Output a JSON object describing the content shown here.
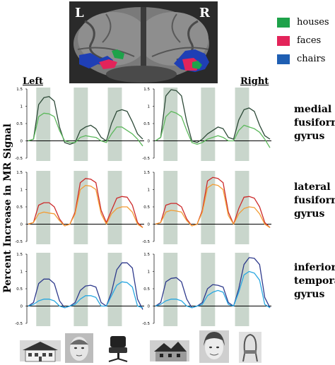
{
  "figure": {
    "legend": [
      {
        "label": "houses",
        "color": "#1ea24a"
      },
      {
        "label": "faces",
        "color": "#e3245a"
      },
      {
        "label": "chairs",
        "color": "#1f5fb3"
      }
    ],
    "brain_labels": {
      "left": "L",
      "right": "R"
    },
    "column_labels": {
      "left": "Left",
      "right": "Right"
    },
    "y_axis_label": "Percent Increase in MR Signal",
    "region_labels": [
      [
        "medial",
        "fusiform",
        "gyrus"
      ],
      [
        "lateral",
        "fusiform",
        "gyrus"
      ],
      [
        "inferior",
        "temporal",
        "gyrus"
      ]
    ],
    "stimuli": [
      "house",
      "face",
      "chair"
    ],
    "stimulus_icon_names": [
      "house-photo-icon",
      "face-photo-icon",
      "chair-photo-icon"
    ]
  },
  "chart_data": [
    {
      "type": "line",
      "panel": "medial fusiform gyrus - Left",
      "ylim": [
        -0.5,
        1.5
      ],
      "y_ticks": [
        "1.5",
        "1",
        "0.5",
        "0",
        "-0.5"
      ],
      "series": [
        {
          "color": "#2d4a38",
          "values": [
            0,
            0.05,
            1.05,
            1.25,
            1.28,
            1.15,
            0.4,
            -0.05,
            -0.1,
            -0.05,
            0.3,
            0.4,
            0.45,
            0.35,
            0.1,
            0,
            0.5,
            0.85,
            0.9,
            0.85,
            0.55,
            0.2,
            0.05
          ]
        },
        {
          "color": "#5cb85c",
          "values": [
            0,
            0.05,
            0.7,
            0.8,
            0.78,
            0.7,
            0.3,
            0,
            -0.05,
            -0.05,
            0.1,
            0.15,
            0.12,
            0.1,
            0,
            -0.05,
            0.2,
            0.4,
            0.4,
            0.3,
            0.2,
            0.05,
            -0.15
          ]
        }
      ]
    },
    {
      "type": "line",
      "panel": "medial fusiform gyrus - Right",
      "ylim": [
        -0.5,
        1.5
      ],
      "y_ticks": [
        "1.5",
        "1",
        "0.5",
        "0",
        "-0.5"
      ],
      "series": [
        {
          "color": "#2d4a38",
          "values": [
            0,
            0.1,
            1.3,
            1.48,
            1.45,
            1.3,
            0.55,
            0,
            -0.05,
            0.05,
            0.2,
            0.3,
            0.4,
            0.35,
            0.1,
            0.05,
            0.6,
            0.9,
            0.95,
            0.85,
            0.45,
            0.15,
            0.05
          ]
        },
        {
          "color": "#5cb85c",
          "values": [
            0,
            0.1,
            0.7,
            0.85,
            0.8,
            0.7,
            0.3,
            -0.05,
            -0.1,
            -0.05,
            0.05,
            0.1,
            0.15,
            0.1,
            0,
            0,
            0.3,
            0.45,
            0.4,
            0.35,
            0.25,
            0.05,
            -0.2
          ]
        }
      ]
    },
    {
      "type": "line",
      "panel": "lateral fusiform gyrus - Left",
      "ylim": [
        -0.5,
        1.5
      ],
      "y_ticks": [
        "1.5",
        "1",
        "0.5",
        "0",
        "-0.5"
      ],
      "series": [
        {
          "color": "#cc2a2a",
          "values": [
            0,
            0.05,
            0.55,
            0.62,
            0.62,
            0.5,
            0.15,
            -0.05,
            0,
            0.35,
            1.2,
            1.32,
            1.3,
            1.2,
            0.4,
            0.05,
            0.4,
            0.75,
            0.8,
            0.78,
            0.55,
            0.05,
            -0.1
          ]
        },
        {
          "color": "#f39c34",
          "values": [
            0,
            0.05,
            0.3,
            0.35,
            0.32,
            0.3,
            0.1,
            -0.05,
            0,
            0.3,
            1.0,
            1.12,
            1.1,
            1.0,
            0.3,
            0,
            0.3,
            0.45,
            0.5,
            0.5,
            0.35,
            0,
            -0.1
          ]
        }
      ]
    },
    {
      "type": "line",
      "panel": "lateral fusiform gyrus - Right",
      "ylim": [
        -0.5,
        1.5
      ],
      "y_ticks": [
        "1.5",
        "1",
        "0.5",
        "0",
        "-0.5"
      ],
      "series": [
        {
          "color": "#cc2a2a",
          "values": [
            0,
            0.05,
            0.55,
            0.6,
            0.6,
            0.5,
            0.15,
            -0.05,
            0,
            0.4,
            1.25,
            1.35,
            1.32,
            1.2,
            0.35,
            0,
            0.45,
            0.78,
            0.8,
            0.75,
            0.5,
            0.05,
            -0.1
          ]
        },
        {
          "color": "#f39c34",
          "values": [
            0,
            0.05,
            0.35,
            0.4,
            0.38,
            0.35,
            0.1,
            -0.05,
            0,
            0.35,
            1.05,
            1.15,
            1.12,
            1.0,
            0.25,
            0,
            0.3,
            0.45,
            0.5,
            0.48,
            0.3,
            0,
            -0.1
          ]
        }
      ]
    },
    {
      "type": "line",
      "panel": "inferior temporal gyrus - Left",
      "ylim": [
        -0.5,
        1.5
      ],
      "y_ticks": [
        "1.5",
        "1",
        "0.5",
        "0",
        "-0.5"
      ],
      "series": [
        {
          "color": "#2e3a8c",
          "values": [
            0,
            0.1,
            0.65,
            0.78,
            0.78,
            0.65,
            0.15,
            -0.05,
            0,
            0.1,
            0.45,
            0.58,
            0.6,
            0.55,
            0.1,
            0,
            0.4,
            1.05,
            1.25,
            1.25,
            1.1,
            0.2,
            -0.1
          ]
        },
        {
          "color": "#29a7e1",
          "values": [
            0,
            0.05,
            0.15,
            0.2,
            0.2,
            0.15,
            0,
            -0.05,
            0,
            0.05,
            0.2,
            0.3,
            0.3,
            0.25,
            0,
            0,
            0.3,
            0.6,
            0.7,
            0.68,
            0.55,
            0,
            -0.05
          ]
        }
      ]
    },
    {
      "type": "line",
      "panel": "inferior temporal gyrus - Right",
      "ylim": [
        -0.5,
        1.5
      ],
      "y_ticks": [
        "1.5",
        "1",
        "0.5",
        "0",
        "-0.5"
      ],
      "series": [
        {
          "color": "#2e3a8c",
          "values": [
            0,
            0.1,
            0.7,
            0.8,
            0.82,
            0.7,
            0.2,
            -0.05,
            0,
            0.1,
            0.5,
            0.62,
            0.6,
            0.55,
            0.1,
            0,
            0.5,
            1.2,
            1.4,
            1.38,
            1.2,
            0.25,
            -0.05
          ]
        },
        {
          "color": "#29a7e1",
          "values": [
            0,
            0.05,
            0.15,
            0.2,
            0.2,
            0.15,
            0,
            -0.05,
            0,
            0.05,
            0.3,
            0.4,
            0.45,
            0.4,
            0.05,
            0,
            0.4,
            0.9,
            1.0,
            0.95,
            0.75,
            0.05,
            -0.05
          ]
        }
      ]
    }
  ]
}
